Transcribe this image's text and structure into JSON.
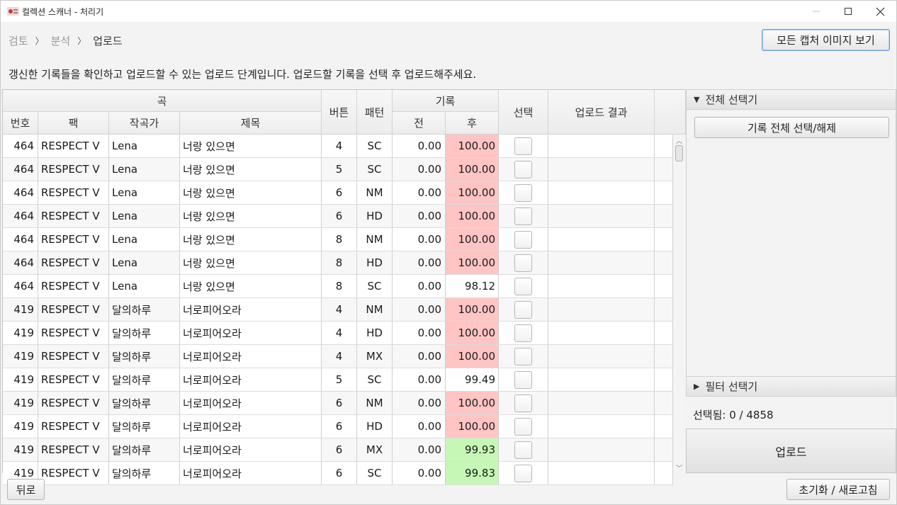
{
  "window": {
    "title": "컬렉션 스캐너 - 처리기",
    "minimize": "—",
    "maximize": "☐",
    "close": "✕"
  },
  "breadcrumb": {
    "items": [
      "검토",
      "분석",
      "업로드"
    ],
    "separator": "〉"
  },
  "header": {
    "gallery_button": "모든 캡처 이미지 보기",
    "info": "갱신한 기록들을 확인하고 업로드할 수 있는 업로드 단계입니다. 업로드할 기록을 선택 후 업로드해주세요."
  },
  "table": {
    "group_song": "곡",
    "group_record": "기록",
    "col_number": "번호",
    "col_pack": "팩",
    "col_composer": "작곡가",
    "col_title": "제목",
    "col_buttons": "버튼",
    "col_pattern": "패턴",
    "col_before": "전",
    "col_after": "후",
    "col_select": "선택",
    "col_result": "업로드 결과",
    "rows": [
      {
        "number": "464",
        "pack": "RESPECT V",
        "composer": "Lena",
        "title": "너랑 있으면",
        "buttons": "4",
        "pattern": "SC",
        "before": "0.00",
        "after": "100.00",
        "highlight": "red"
      },
      {
        "number": "464",
        "pack": "RESPECT V",
        "composer": "Lena",
        "title": "너랑 있으면",
        "buttons": "5",
        "pattern": "SC",
        "before": "0.00",
        "after": "100.00",
        "highlight": "red"
      },
      {
        "number": "464",
        "pack": "RESPECT V",
        "composer": "Lena",
        "title": "너랑 있으면",
        "buttons": "6",
        "pattern": "NM",
        "before": "0.00",
        "after": "100.00",
        "highlight": "red"
      },
      {
        "number": "464",
        "pack": "RESPECT V",
        "composer": "Lena",
        "title": "너랑 있으면",
        "buttons": "6",
        "pattern": "HD",
        "before": "0.00",
        "after": "100.00",
        "highlight": "red"
      },
      {
        "number": "464",
        "pack": "RESPECT V",
        "composer": "Lena",
        "title": "너랑 있으면",
        "buttons": "8",
        "pattern": "NM",
        "before": "0.00",
        "after": "100.00",
        "highlight": "red"
      },
      {
        "number": "464",
        "pack": "RESPECT V",
        "composer": "Lena",
        "title": "너랑 있으면",
        "buttons": "8",
        "pattern": "HD",
        "before": "0.00",
        "after": "100.00",
        "highlight": "red"
      },
      {
        "number": "464",
        "pack": "RESPECT V",
        "composer": "Lena",
        "title": "너랑 있으면",
        "buttons": "8",
        "pattern": "SC",
        "before": "0.00",
        "after": "98.12",
        "highlight": "none"
      },
      {
        "number": "419",
        "pack": "RESPECT V",
        "composer": "달의하루",
        "title": "너로피어오라",
        "buttons": "4",
        "pattern": "NM",
        "before": "0.00",
        "after": "100.00",
        "highlight": "red"
      },
      {
        "number": "419",
        "pack": "RESPECT V",
        "composer": "달의하루",
        "title": "너로피어오라",
        "buttons": "4",
        "pattern": "HD",
        "before": "0.00",
        "after": "100.00",
        "highlight": "red"
      },
      {
        "number": "419",
        "pack": "RESPECT V",
        "composer": "달의하루",
        "title": "너로피어오라",
        "buttons": "4",
        "pattern": "MX",
        "before": "0.00",
        "after": "100.00",
        "highlight": "red"
      },
      {
        "number": "419",
        "pack": "RESPECT V",
        "composer": "달의하루",
        "title": "너로피어오라",
        "buttons": "5",
        "pattern": "SC",
        "before": "0.00",
        "after": "99.49",
        "highlight": "none"
      },
      {
        "number": "419",
        "pack": "RESPECT V",
        "composer": "달의하루",
        "title": "너로피어오라",
        "buttons": "6",
        "pattern": "NM",
        "before": "0.00",
        "after": "100.00",
        "highlight": "red"
      },
      {
        "number": "419",
        "pack": "RESPECT V",
        "composer": "달의하루",
        "title": "너로피어오라",
        "buttons": "6",
        "pattern": "HD",
        "before": "0.00",
        "after": "100.00",
        "highlight": "red"
      },
      {
        "number": "419",
        "pack": "RESPECT V",
        "composer": "달의하루",
        "title": "너로피어오라",
        "buttons": "6",
        "pattern": "MX",
        "before": "0.00",
        "after": "99.93",
        "highlight": "green"
      },
      {
        "number": "419",
        "pack": "RESPECT V",
        "composer": "달의하루",
        "title": "너로피어오라",
        "buttons": "6",
        "pattern": "SC",
        "before": "0.00",
        "after": "99.83",
        "highlight": "green"
      }
    ]
  },
  "panel": {
    "select_all_header": "전체 선택기",
    "select_all_button": "기록 전체 선택/해제",
    "filter_header": "필터 선택기",
    "selected_count": "선택됨: 0 / 4858",
    "upload_button": "업로드"
  },
  "footer": {
    "back_button": "뒤로",
    "reset_button": "초기화 / 새로고침"
  },
  "colors": {
    "highlight_red": "#ffc4c4",
    "highlight_green": "#c6f7b6",
    "focus_border": "#6b9fd4"
  }
}
